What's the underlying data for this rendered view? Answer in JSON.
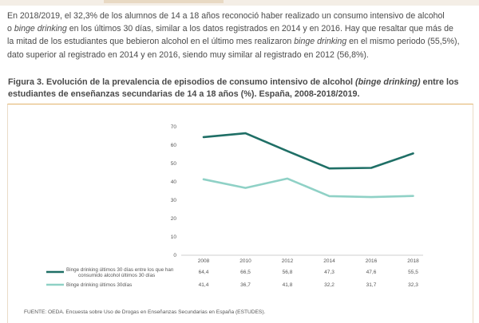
{
  "paragraph": {
    "l1a": "En 2018/2019, el 32,3% de los alumnos de 14 a 18 años reconoció haber realizado un consumo intensivo de alcohol",
    "l2a": "o ",
    "l2em": "binge drinking",
    "l2b": " en los últimos 30 días, similar a los datos registrados en 2014 y en 2016. Hay que resaltar que más de",
    "l3a": "la mitad de los estudiantes que bebieron alcohol en el último mes realizaron ",
    "l3em": "binge drinking",
    "l3b": " en el mismo periodo (55,5%),",
    "l4a": "dato superior al registrado en 2014 y en 2016, siendo muy similar al registrado en 2012 (56,8%)."
  },
  "figure": {
    "title_a": "Figura 3. Evolución de la prevalencia de episodios de consumo intensivo de alcohol ",
    "title_em": "(binge drinking)",
    "title_b": " entre los",
    "title_c": "estudiantes de enseñanzas secundarias de 14 a 18 años (%). España, 2008-2018/2019."
  },
  "chart_data": {
    "type": "line",
    "x": [
      "2008",
      "2010",
      "2012",
      "2014",
      "2016",
      "2018"
    ],
    "ylim": [
      0,
      70
    ],
    "yticks": [
      0,
      10,
      20,
      30,
      40,
      50,
      60,
      70
    ],
    "series": [
      {
        "name": "Binge drinking últimos 30 días entre los que han consumido alcohol últimos 30 días",
        "name_line1": "Binge drinking últimos 30 días entre los que han",
        "name_line2": "consumido alcohol últimos 30 días",
        "values": [
          64.4,
          66.5,
          56.8,
          47.3,
          47.6,
          55.5
        ],
        "labels": [
          "64,4",
          "66,5",
          "56,8",
          "47,3",
          "47,6",
          "55,5"
        ],
        "color": "#1f6f66"
      },
      {
        "name": "Binge drinking últimos 30días",
        "name_line1": "Binge drinking últimos 30días",
        "values": [
          41.4,
          36.7,
          41.8,
          32.2,
          31.7,
          32.3
        ],
        "labels": [
          "41,4",
          "36,7",
          "41,8",
          "32,2",
          "31,7",
          "32,3"
        ],
        "color": "#8fd1c6"
      }
    ],
    "grid": false,
    "legend": "table-below"
  },
  "source": "FUENTE: OEDA. Encuesta sobre Uso de Drogas en Enseñanzas Secundarias en España (ESTUDES)."
}
